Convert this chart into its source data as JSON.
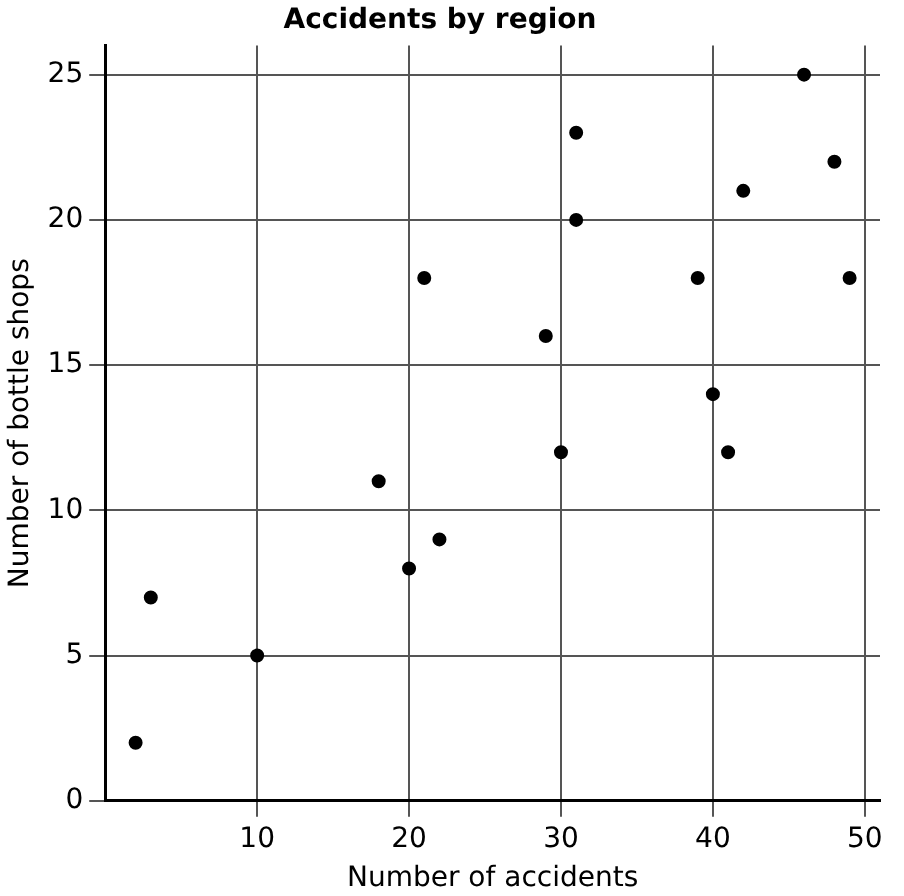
{
  "chart_data": {
    "type": "scatter",
    "title": "Accidents by region",
    "xlabel": "Number of accidents",
    "ylabel": "Number of bottle shops",
    "x": [
      2,
      3,
      10,
      18,
      20,
      21,
      22,
      29,
      30,
      31,
      31,
      39,
      40,
      41,
      42,
      46,
      48,
      49
    ],
    "values": [
      2,
      7,
      5,
      11,
      8,
      18,
      9,
      16,
      12,
      23,
      20,
      18,
      14,
      12,
      21,
      25,
      22,
      18
    ],
    "color": "#000000",
    "marker": "circle",
    "xlim": [
      0,
      51
    ],
    "xticks": [
      10,
      20,
      30,
      40,
      50
    ],
    "ylim": [
      0,
      26
    ],
    "yticks": [
      0,
      5,
      10,
      15,
      20,
      25
    ],
    "grid": true,
    "legend": false
  }
}
